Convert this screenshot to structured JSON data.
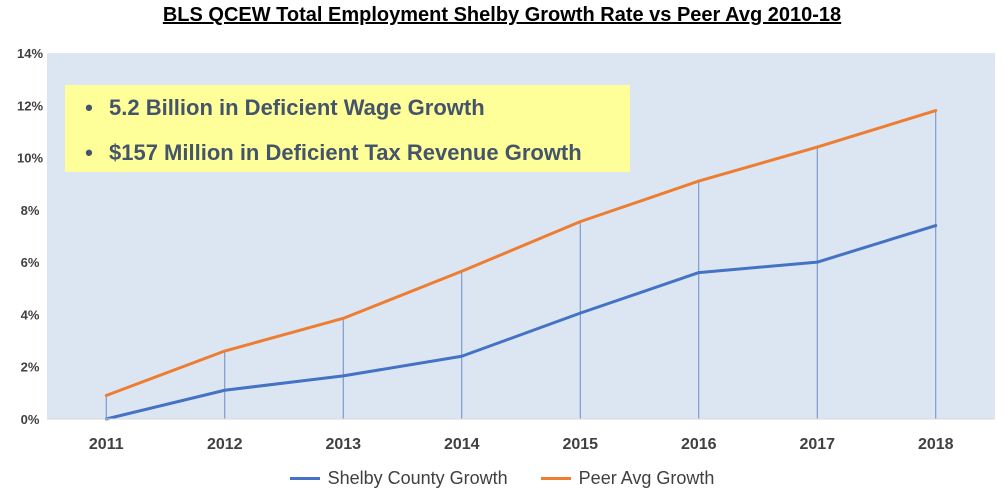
{
  "chart_data": {
    "type": "line",
    "title": "BLS QCEW Total Employment Shelby Growth Rate vs Peer Avg 2010-18",
    "x": [
      "2011",
      "2012",
      "2013",
      "2014",
      "2015",
      "2016",
      "2017",
      "2018"
    ],
    "series": [
      {
        "name": "Shelby County Growth",
        "color": "#4472c4",
        "values": [
          0.0,
          1.1,
          1.65,
          2.4,
          4.05,
          5.6,
          6.0,
          7.4
        ]
      },
      {
        "name": "Peer Avg Growth",
        "color": "#ed7d31",
        "values": [
          0.9,
          2.6,
          3.85,
          5.65,
          7.55,
          9.1,
          10.4,
          11.8
        ]
      }
    ],
    "yticks": [
      "0%",
      "2%",
      "4%",
      "6%",
      "8%",
      "10%",
      "12%",
      "14%"
    ],
    "ylim": [
      0,
      14
    ],
    "y_unit": "percent",
    "xlabel": "",
    "ylabel": "",
    "grid": "vertical drop lines at each year",
    "legend_position": "bottom",
    "plot_background": "#dce6f2",
    "annotations": [
      "5.2 Billion in Deficient Wage Growth",
      "$157 Million in Deficient Tax Revenue Growth"
    ],
    "annotation_background": "#ffff99",
    "annotation_text_color": "#44546a"
  }
}
